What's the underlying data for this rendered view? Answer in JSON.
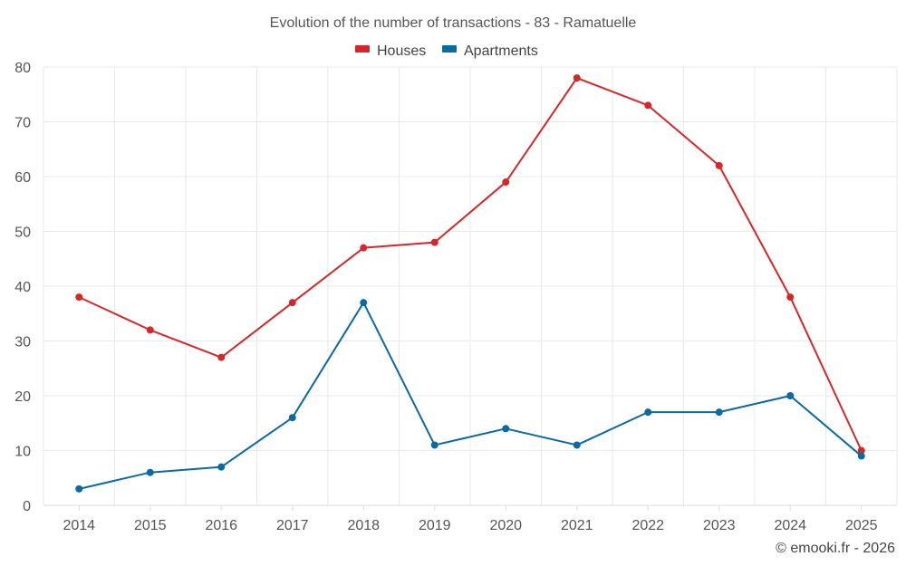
{
  "chart_data": {
    "type": "line",
    "title": "Evolution of the number of transactions - 83 - Ramatuelle",
    "xlabel": "",
    "ylabel": "",
    "categories": [
      "2014",
      "2015",
      "2016",
      "2017",
      "2018",
      "2019",
      "2020",
      "2021",
      "2022",
      "2023",
      "2024",
      "2025"
    ],
    "ylim": [
      0,
      80
    ],
    "yticks": [
      0,
      10,
      20,
      30,
      40,
      50,
      60,
      70,
      80
    ],
    "grid": true,
    "legend_position": "top-center",
    "series": [
      {
        "name": "Houses",
        "color": "#d62728",
        "values": [
          38,
          32,
          27,
          37,
          47,
          48,
          59,
          78,
          73,
          62,
          38,
          10
        ]
      },
      {
        "name": "Apartments",
        "color": "#0a6aa1",
        "values": [
          3,
          6,
          7,
          16,
          37,
          11,
          14,
          11,
          17,
          17,
          20,
          9
        ]
      }
    ]
  },
  "credit": "© emooki.fr - 2026"
}
